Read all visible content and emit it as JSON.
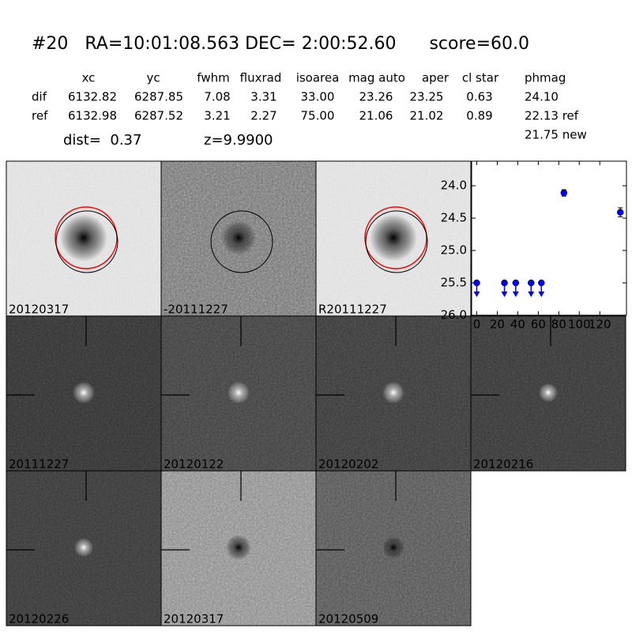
{
  "header": {
    "title": "#20   RA=10:01:08.563 DEC= 2:00:52.60      score=60.0",
    "dist": "dist=  0.37",
    "z": "z=9.9900"
  },
  "table": {
    "columns": [
      "xc",
      "yc",
      "fwhm",
      "fluxrad",
      "isoarea",
      "mag auto",
      "aper",
      "cl star",
      "phmag"
    ],
    "rows": [
      {
        "label": "dif",
        "cells": [
          "6132.82",
          "6287.85",
          "7.08",
          "3.31",
          "33.00",
          "23.26",
          "23.25",
          "0.63",
          "24.10"
        ]
      },
      {
        "label": "ref",
        "cells": [
          "6132.98",
          "6287.52",
          "3.21",
          "2.27",
          "75.00",
          "21.06",
          "21.02",
          "0.89",
          "22.13 ref"
        ]
      }
    ],
    "extra": "21.75 new"
  },
  "stamps": [
    {
      "label": "20120317"
    },
    {
      "label": "-20111227"
    },
    {
      "label": "R20111227"
    },
    {
      "label": "20111227"
    },
    {
      "label": "20120122"
    },
    {
      "label": "20120202"
    },
    {
      "label": "20120216"
    },
    {
      "label": "20120226"
    },
    {
      "label": "20120317",
      "label_color": "#ff0000"
    },
    {
      "label": "20120509"
    }
  ],
  "chart_data": {
    "type": "scatter",
    "xlim": [
      -5,
      146
    ],
    "ylim": [
      26.0,
      23.62
    ],
    "xticks": [
      0,
      20,
      40,
      60,
      80,
      100,
      120
    ],
    "yticks": [
      {
        "value": 24.0,
        "label": "24.0"
      },
      24.5,
      {
        "value": 25.0,
        "label": "25.0"
      },
      25.5,
      {
        "value": 26.0,
        "label": "26.0"
      }
    ],
    "series": [
      {
        "kind": "detection",
        "color": "#0000ff",
        "x": [
          85,
          140
        ],
        "values": [
          24.11,
          24.41
        ],
        "errors": [
          0.05,
          0.07
        ]
      },
      {
        "kind": "upper_limit",
        "color": "#0000ff",
        "x": [
          0,
          27,
          38,
          53,
          63
        ],
        "values": [
          25.5,
          25.5,
          25.5,
          25.5,
          25.5
        ]
      }
    ]
  }
}
